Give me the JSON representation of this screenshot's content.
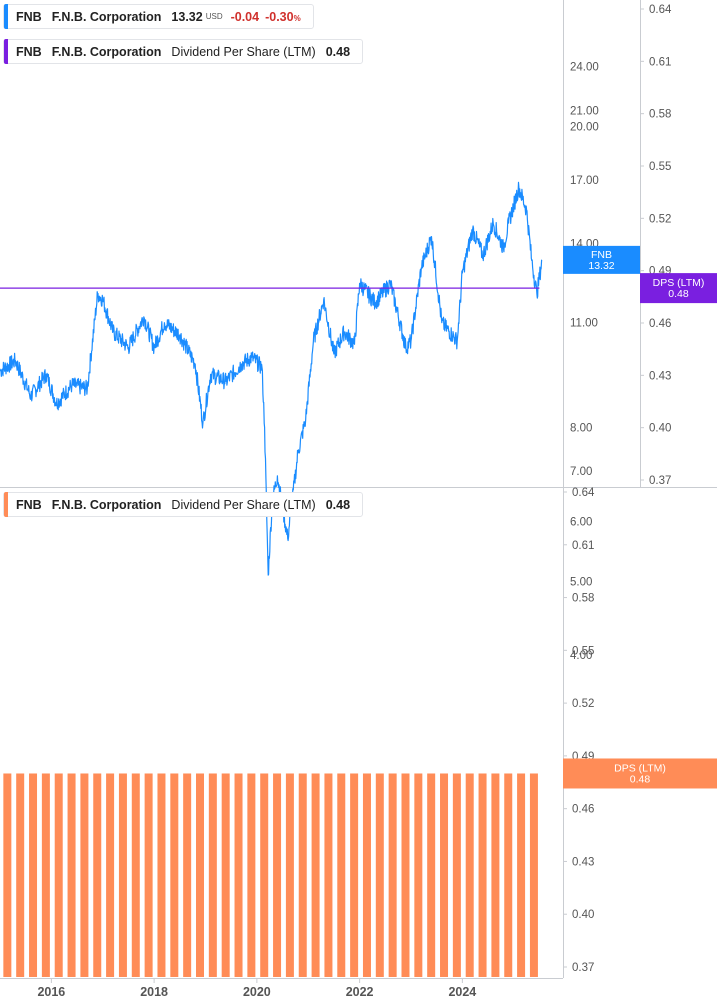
{
  "legends": {
    "price": {
      "ticker": "FNB",
      "name": "F.N.B. Corporation",
      "value": "13.32",
      "unit": "USD",
      "change": "-0.04",
      "change_pct": "-0.30",
      "pct_sign": "%",
      "color": "#1a8cff"
    },
    "dps_top": {
      "ticker": "FNB",
      "name": "F.N.B. Corporation",
      "metric": "Dividend Per Share (LTM)",
      "value": "0.48",
      "color": "#7a1fe0"
    },
    "dps_bottom": {
      "ticker": "FNB",
      "name": "F.N.B. Corporation",
      "metric": "Dividend Per Share (LTM)",
      "value": "0.48",
      "color": "#ff8c57"
    }
  },
  "tags": {
    "price": {
      "label": "FNB",
      "value": "13.32",
      "color": "#1a8cff"
    },
    "dps_top": {
      "label": "DPS (LTM)",
      "value": "0.48",
      "color": "#7a1fe0"
    },
    "dps_bottom": {
      "label": "DPS (LTM)",
      "value": "0.48",
      "color": "#ff8c57"
    }
  },
  "x_axis": {
    "ticks": [
      "2016",
      "2018",
      "2020",
      "2022",
      "2024"
    ]
  },
  "chart_data": [
    {
      "type": "line",
      "series": [
        {
          "name": "FNB",
          "color": "#1a8cff",
          "x": [
            2015.0,
            2015.3,
            2015.6,
            2015.9,
            2016.1,
            2016.4,
            2016.7,
            2016.9,
            2017.0,
            2017.2,
            2017.5,
            2017.8,
            2018.0,
            2018.2,
            2018.5,
            2018.8,
            2018.95,
            2019.1,
            2019.4,
            2019.7,
            2019.9,
            2020.1,
            2020.15,
            2020.22,
            2020.3,
            2020.4,
            2020.6,
            2020.8,
            2020.95,
            2021.1,
            2021.3,
            2021.5,
            2021.7,
            2021.9,
            2022.0,
            2022.3,
            2022.6,
            2022.9,
            2023.0,
            2023.2,
            2023.4,
            2023.6,
            2023.9,
            2024.0,
            2024.2,
            2024.4,
            2024.6,
            2024.8,
            2024.9,
            2025.1,
            2025.25,
            2025.35,
            2025.45,
            2025.55
          ],
          "y": [
            9.5,
            9.8,
            8.8,
            9.4,
            8.6,
            9.1,
            9.0,
            12.0,
            11.8,
            10.7,
            10.2,
            11.2,
            10.2,
            11.0,
            10.6,
            9.7,
            8.1,
            9.4,
            9.2,
            9.7,
            9.9,
            9.6,
            8.0,
            5.1,
            6.4,
            6.9,
            5.7,
            7.4,
            8.2,
            10.4,
            11.8,
            10.0,
            10.7,
            10.3,
            12.4,
            11.7,
            12.4,
            10.2,
            10.4,
            13.0,
            14.3,
            11.0,
            10.4,
            12.8,
            14.6,
            13.5,
            14.9,
            13.8,
            14.9,
            16.6,
            15.5,
            13.3,
            12.0,
            13.32
          ]
        }
      ],
      "y_left": {
        "ticks": [
          4.0,
          5.0,
          6.0,
          7.0,
          8.0,
          11.0,
          14.0,
          17.0,
          20.0,
          21.0,
          24.0
        ],
        "scale": "log",
        "range": [
          3.8,
          25.0
        ]
      },
      "y_right": {
        "ticks": [
          0.37,
          0.4,
          0.43,
          0.46,
          0.49,
          0.52,
          0.55,
          0.58,
          0.61,
          0.64
        ]
      }
    },
    {
      "type": "line",
      "series": [
        {
          "name": "Dividend Per Share (LTM)",
          "color": "#7a1fe0",
          "x": [
            2015.0,
            2025.5
          ],
          "y": [
            0.48,
            0.48
          ]
        }
      ]
    },
    {
      "type": "bar",
      "series": [
        {
          "name": "Dividend Per Share (LTM)",
          "color": "#ff8c57",
          "value": 0.48,
          "start": 2015.25,
          "end": 2025.5,
          "step": 0.25
        }
      ],
      "y_right": {
        "ticks": [
          0.37,
          0.4,
          0.43,
          0.46,
          0.49,
          0.52,
          0.55,
          0.58,
          0.61,
          0.64
        ]
      }
    }
  ]
}
